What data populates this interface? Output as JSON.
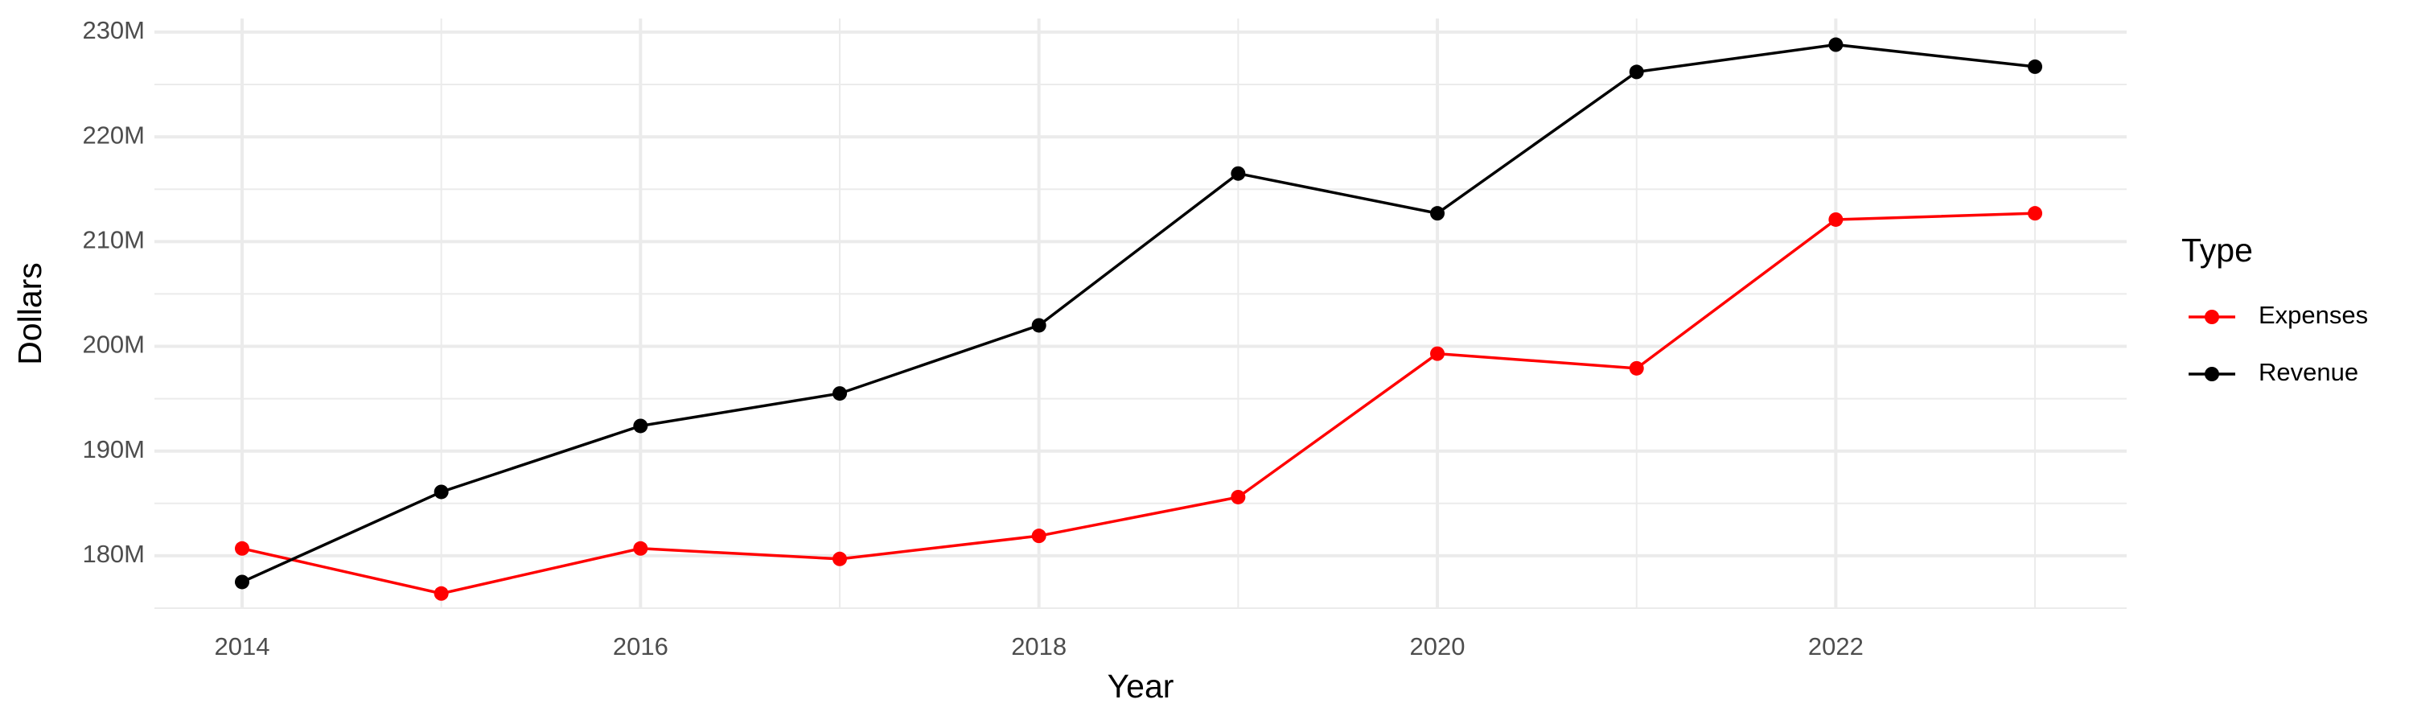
{
  "chart_data": {
    "type": "line",
    "x": [
      2014,
      2015,
      2016,
      2017,
      2018,
      2019,
      2020,
      2021,
      2022,
      2023
    ],
    "series": [
      {
        "name": "Expenses",
        "color": "#ff0000",
        "values": [
          180700000,
          176400000,
          180700000,
          179700000,
          181900000,
          185600000,
          199300000,
          197900000,
          212100000,
          212700000
        ]
      },
      {
        "name": "Revenue",
        "color": "#000000",
        "values": [
          177500000,
          186100000,
          192400000,
          195500000,
          202000000,
          216500000,
          212700000,
          226200000,
          228800000,
          226700000
        ]
      }
    ],
    "xlim": [
      2013.56,
      2023.46
    ],
    "ylim": [
      175000000,
      231300000
    ],
    "xticks": [
      2014,
      2016,
      2018,
      2020,
      2022
    ],
    "yticks": [
      {
        "value": 180000000,
        "label": "180M"
      },
      {
        "value": 190000000,
        "label": "190M"
      },
      {
        "value": 200000000,
        "label": "200M"
      },
      {
        "value": 210000000,
        "label": "210M"
      },
      {
        "value": 220000000,
        "label": "220M"
      },
      {
        "value": 230000000,
        "label": "230M"
      }
    ],
    "x_label": "Year",
    "y_label": "Dollars",
    "legend_title": "Type",
    "legend_position": "right",
    "grid": true
  }
}
